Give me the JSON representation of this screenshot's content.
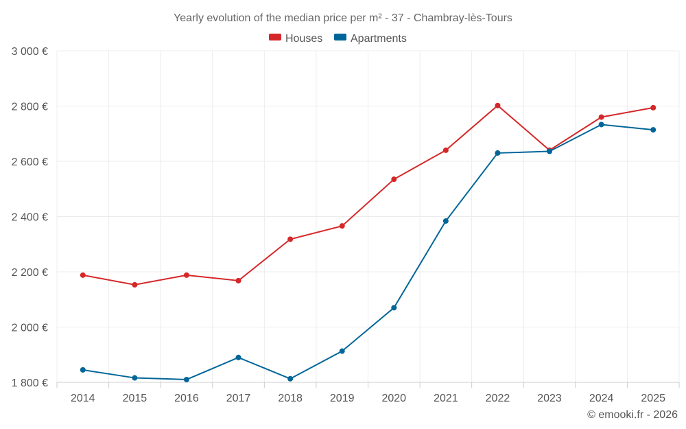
{
  "chart_data": {
    "type": "line",
    "title": "Yearly evolution of the median price per m² - 37 - Chambray-lès-Tours",
    "categories": [
      "2014",
      "2015",
      "2016",
      "2017",
      "2018",
      "2019",
      "2020",
      "2021",
      "2022",
      "2023",
      "2024",
      "2025"
    ],
    "series": [
      {
        "name": "Houses",
        "color": "#d62728",
        "values": [
          2188,
          2153,
          2188,
          2168,
          2318,
          2366,
          2535,
          2640,
          2802,
          2640,
          2760,
          2794
        ]
      },
      {
        "name": "Apartments",
        "color": "#006699",
        "values": [
          1845,
          1816,
          1810,
          1890,
          1813,
          1913,
          2070,
          2384,
          2630,
          2636,
          2733,
          2714
        ]
      }
    ],
    "ylim": [
      1800,
      3000
    ],
    "yticks": [
      1800,
      2000,
      2200,
      2400,
      2600,
      2800,
      3000
    ],
    "ytick_labels": [
      "1 800 €",
      "2 000 €",
      "2 200 €",
      "2 400 €",
      "2 600 €",
      "2 800 €",
      "3 000 €"
    ],
    "xlabel": "",
    "ylabel": "",
    "grid": true,
    "legend_position": "top-center"
  },
  "credit": "© emooki.fr - 2026"
}
